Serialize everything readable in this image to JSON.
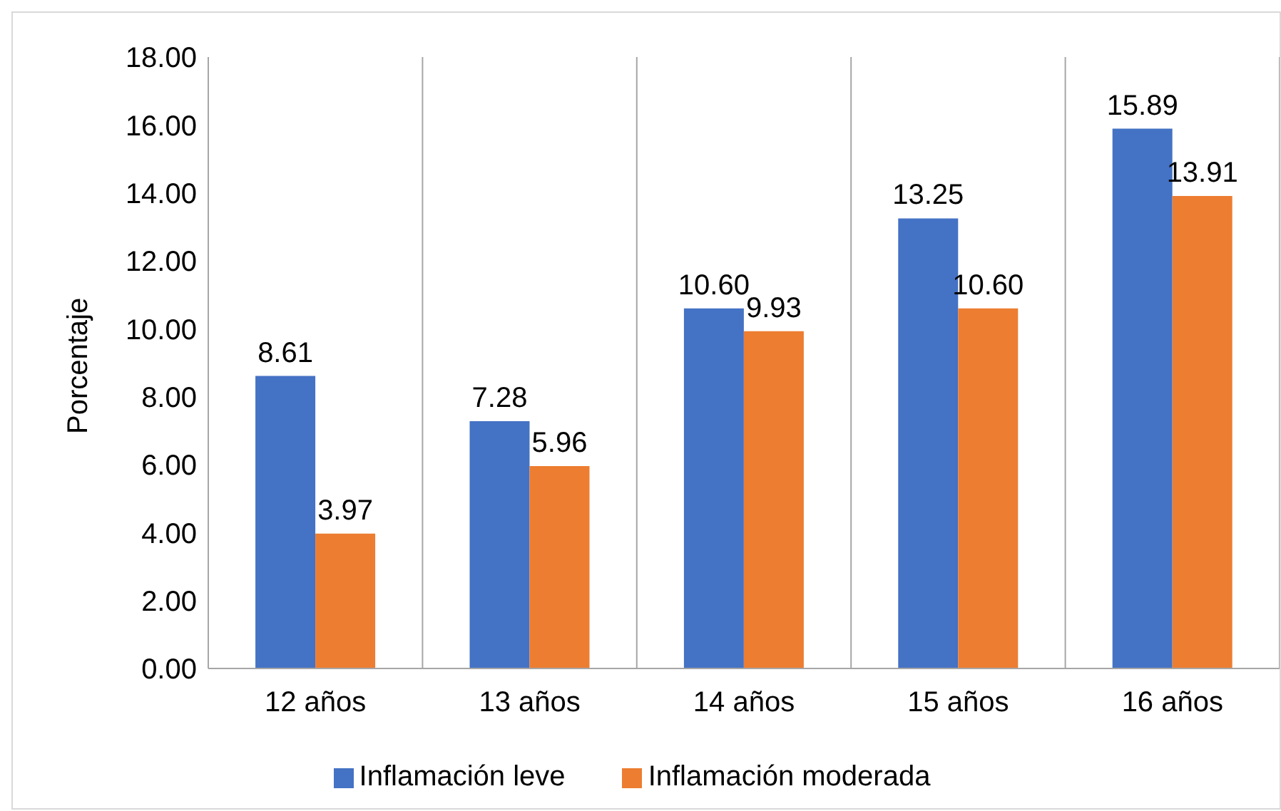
{
  "chart_data": {
    "type": "bar",
    "ylabel": "Porcentaje",
    "categories": [
      "12 años",
      "13 años",
      "14 años",
      "15 años",
      "16 años"
    ],
    "series": [
      {
        "name": "Inflamación leve",
        "color": "#4472c4",
        "values": [
          8.61,
          7.28,
          10.6,
          13.25,
          15.89
        ],
        "value_labels": [
          "8.61",
          "7.28",
          "10.60",
          "13.25",
          "15.89"
        ]
      },
      {
        "name": "Inflamación moderada",
        "color": "#ed7d31",
        "values": [
          3.97,
          5.96,
          9.93,
          10.6,
          13.91
        ],
        "value_labels": [
          "3.97",
          "5.96",
          "9.93",
          "10.60",
          "13.91"
        ]
      }
    ],
    "ylim": [
      0,
      18
    ],
    "yticks": [
      {
        "value": 0,
        "label": "0.00"
      },
      {
        "value": 2,
        "label": "2.00"
      },
      {
        "value": 4,
        "label": "4.00"
      },
      {
        "value": 6,
        "label": "6.00"
      },
      {
        "value": 8,
        "label": "8.00"
      },
      {
        "value": 10,
        "label": "10.00"
      },
      {
        "value": 12,
        "label": "12.00"
      },
      {
        "value": 14,
        "label": "14.00"
      },
      {
        "value": 16,
        "label": "16.00"
      },
      {
        "value": 18,
        "label": "18.00"
      }
    ],
    "grid": "x",
    "legend": "bottom"
  }
}
